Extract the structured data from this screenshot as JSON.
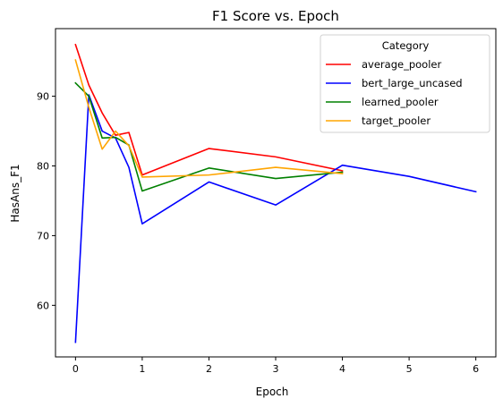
{
  "chart_data": {
    "type": "line",
    "title": "F1 Score vs. Epoch",
    "xlabel": "Epoch",
    "ylabel": "HasAns_F1",
    "xlim": [
      -0.3,
      6.3
    ],
    "ylim": [
      52.6,
      99.7
    ],
    "xticks": [
      0,
      1,
      2,
      3,
      4,
      5,
      6
    ],
    "yticks": [
      60,
      70,
      80,
      90
    ],
    "grid": false,
    "legend": {
      "title": "Category",
      "placement": "top-right"
    },
    "series": [
      {
        "name": "average_pooler",
        "color": "#ff0000",
        "x": [
          0,
          0.2,
          0.4,
          0.6,
          0.8,
          1,
          2,
          3,
          4
        ],
        "y": [
          97.4,
          91.6,
          87.6,
          84.4,
          84.8,
          78.7,
          82.5,
          81.3,
          79.3
        ]
      },
      {
        "name": "bert_large_uncased",
        "color": "#0000ff",
        "x": [
          0,
          0.2,
          0.4,
          0.6,
          0.8,
          1,
          2,
          3,
          4,
          5,
          6
        ],
        "y": [
          54.7,
          90.2,
          85.0,
          84.0,
          79.8,
          71.7,
          77.7,
          74.4,
          80.1,
          78.5,
          76.3
        ]
      },
      {
        "name": "learned_pooler",
        "color": "#008000",
        "x": [
          0,
          0.2,
          0.4,
          0.6,
          0.8,
          1,
          2,
          3,
          4
        ],
        "y": [
          91.9,
          90.0,
          84.0,
          84.1,
          83.0,
          76.4,
          79.7,
          78.2,
          79.1
        ]
      },
      {
        "name": "target_pooler",
        "color": "#ffa500",
        "x": [
          0,
          0.2,
          0.4,
          0.6,
          0.8,
          1,
          2,
          3,
          4
        ],
        "y": [
          95.2,
          88.4,
          82.4,
          85.0,
          82.9,
          78.4,
          78.7,
          79.8,
          78.9
        ]
      }
    ]
  }
}
